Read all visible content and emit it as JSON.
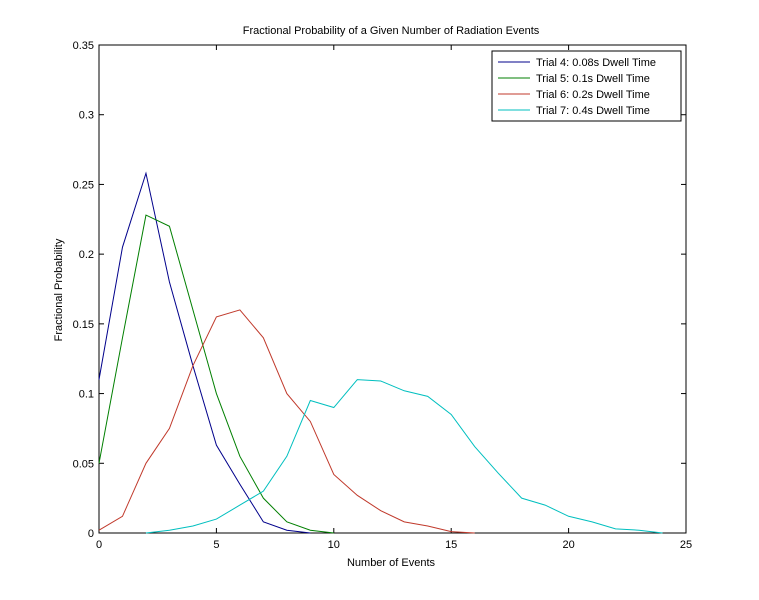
{
  "chart_data": {
    "type": "line",
    "title": "Fractional Probability of a Given Number of Radiation Events",
    "xlabel": "Number of Events",
    "ylabel": "Fractional Probability",
    "xlim": [
      0,
      25
    ],
    "ylim": [
      0,
      0.35
    ],
    "xticks": [
      0,
      5,
      10,
      15,
      20,
      25
    ],
    "yticks": [
      0,
      0.05,
      0.1,
      0.15,
      0.2,
      0.25,
      0.3,
      0.35
    ],
    "xtick_labels": [
      "0",
      "5",
      "10",
      "15",
      "20",
      "25"
    ],
    "ytick_labels": [
      "0",
      "0.05",
      "0.1",
      "0.15",
      "0.2",
      "0.25",
      "0.3",
      "0.35"
    ],
    "grid": false,
    "legend_position": "top-right",
    "series": [
      {
        "name": "Trial 4: 0.08s Dwell Time",
        "color": "#00008b",
        "x": [
          0,
          1,
          2,
          3,
          4,
          5,
          6,
          7,
          8,
          9
        ],
        "y": [
          0.11,
          0.205,
          0.258,
          0.18,
          0.12,
          0.063,
          0.035,
          0.008,
          0.002,
          0.0
        ]
      },
      {
        "name": "Trial 5: 0.1s Dwell Time",
        "color": "#007f00",
        "x": [
          0,
          1,
          2,
          3,
          4,
          5,
          6,
          7,
          8,
          9,
          10
        ],
        "y": [
          0.05,
          0.14,
          0.228,
          0.22,
          0.16,
          0.1,
          0.055,
          0.025,
          0.008,
          0.002,
          0.0
        ]
      },
      {
        "name": "Trial 6: 0.2s Dwell Time",
        "color": "#c0392b",
        "x": [
          0,
          1,
          2,
          3,
          4,
          5,
          6,
          7,
          8,
          9,
          10,
          11,
          12,
          13,
          14,
          15,
          16
        ],
        "y": [
          0.002,
          0.012,
          0.05,
          0.075,
          0.12,
          0.155,
          0.16,
          0.14,
          0.1,
          0.08,
          0.042,
          0.027,
          0.016,
          0.008,
          0.005,
          0.001,
          0.0
        ]
      },
      {
        "name": "Trial 7: 0.4s Dwell Time",
        "color": "#00bfbf",
        "x": [
          2,
          3,
          4,
          5,
          6,
          7,
          8,
          9,
          10,
          11,
          12,
          13,
          14,
          15,
          16,
          17,
          18,
          19,
          20,
          21,
          22,
          23,
          24
        ],
        "y": [
          0.0,
          0.002,
          0.005,
          0.01,
          0.02,
          0.03,
          0.055,
          0.095,
          0.09,
          0.11,
          0.109,
          0.102,
          0.098,
          0.085,
          0.062,
          0.043,
          0.025,
          0.02,
          0.012,
          0.008,
          0.003,
          0.002,
          0.0
        ]
      }
    ]
  }
}
